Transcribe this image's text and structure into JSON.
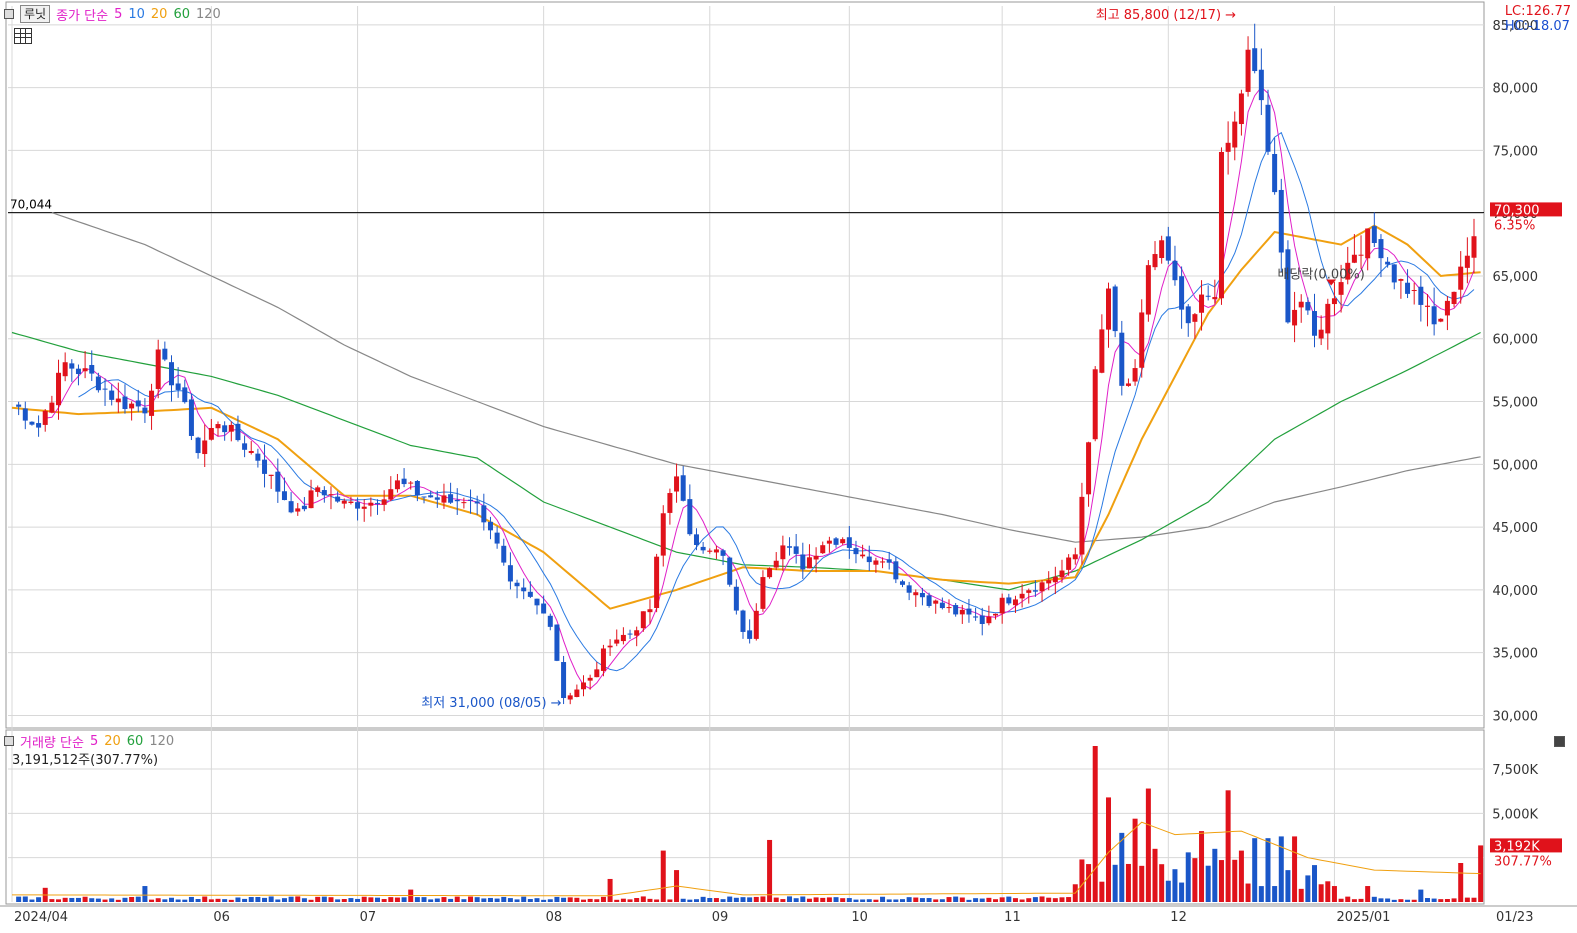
{
  "toolbar": {
    "ticker_button": "루닛",
    "price_legend": {
      "label": "종가 단순",
      "ma": [
        {
          "label": "5",
          "color": "#e020c8"
        },
        {
          "label": "10",
          "color": "#2a7ae2"
        },
        {
          "label": "20",
          "color": "#f0a010"
        },
        {
          "label": "60",
          "color": "#22a03c"
        },
        {
          "label": "120",
          "color": "#888888"
        }
      ]
    },
    "grid_icon": "grid-icon"
  },
  "corner": {
    "lc": "LC:126.77",
    "hc": "HC:-18.07"
  },
  "volume_legend": {
    "label": "거래량 단순",
    "ma": [
      {
        "label": "5",
        "color": "#e020c8"
      },
      {
        "label": "20",
        "color": "#f0a010"
      },
      {
        "label": "60",
        "color": "#22a03c"
      },
      {
        "label": "120",
        "color": "#888888"
      }
    ],
    "info": "3,191,512주(307.77%)"
  },
  "colors": {
    "up": "#e0121b",
    "down": "#1a56c8",
    "grid": "#d8d8d8",
    "axis": "#888888"
  },
  "chart_data": [
    {
      "type": "candlestick",
      "y_ticks": [
        "30,000",
        "35,000",
        "40,000",
        "45,000",
        "50,000",
        "55,000",
        "60,000",
        "65,000",
        "70,000",
        "75,000",
        "80,000",
        "85,000"
      ],
      "y_tick_values": [
        30000,
        35000,
        40000,
        45000,
        50000,
        55000,
        60000,
        65000,
        70000,
        75000,
        80000,
        85000
      ],
      "ylim": [
        29000,
        86500
      ],
      "x_ticks": [
        "2024/04",
        "06",
        "07",
        "08",
        "09",
        "10",
        "11",
        "12",
        "2025/01",
        "01/23"
      ],
      "x_tick_index": [
        0,
        30,
        52,
        80,
        105,
        126,
        149,
        174,
        199,
        224
      ],
      "n_candles": 221,
      "reference_line": {
        "label": "70,044",
        "value": 70044
      },
      "current_price": {
        "label": "70,300",
        "change": "6.35%",
        "value": 70300
      },
      "annotations": {
        "high": {
          "text": "최고 85,800 (12/17)",
          "value": 85800,
          "index": 186
        },
        "low": {
          "text": "최저 31,000 (08/05)",
          "value": 31000,
          "index": 83
        },
        "dividend": {
          "text": "배당락(0.00%)",
          "value": 64000,
          "index": 197
        }
      },
      "anchors": [
        [
          0,
          55000
        ],
        [
          4,
          53000
        ],
        [
          8,
          58000
        ],
        [
          12,
          57000
        ],
        [
          16,
          55000
        ],
        [
          20,
          54500
        ],
        [
          22,
          58500
        ],
        [
          25,
          56000
        ],
        [
          28,
          51000
        ],
        [
          31,
          53500
        ],
        [
          34,
          52000
        ],
        [
          37,
          50500
        ],
        [
          40,
          48000
        ],
        [
          43,
          46000
        ],
        [
          46,
          48200
        ],
        [
          50,
          46800
        ],
        [
          54,
          47000
        ],
        [
          58,
          48500
        ],
        [
          62,
          47500
        ],
        [
          66,
          47000
        ],
        [
          69,
          47400
        ],
        [
          72,
          45000
        ],
        [
          75,
          40200
        ],
        [
          78,
          39200
        ],
        [
          81,
          37500
        ],
        [
          83,
          31500
        ],
        [
          87,
          32800
        ],
        [
          90,
          36000
        ],
        [
          93,
          36500
        ],
        [
          96,
          38500
        ],
        [
          98,
          46000
        ],
        [
          100,
          49500
        ],
        [
          102,
          44000
        ],
        [
          105,
          43500
        ],
        [
          107,
          42500
        ],
        [
          109,
          38000
        ],
        [
          111,
          35800
        ],
        [
          113,
          41500
        ],
        [
          116,
          43500
        ],
        [
          119,
          42000
        ],
        [
          122,
          43800
        ],
        [
          125,
          44200
        ],
        [
          128,
          42500
        ],
        [
          131,
          42800
        ],
        [
          134,
          40500
        ],
        [
          137,
          39500
        ],
        [
          140,
          38600
        ],
        [
          143,
          38000
        ],
        [
          146,
          37500
        ],
        [
          149,
          39000
        ],
        [
          152,
          40000
        ],
        [
          155,
          40500
        ],
        [
          158,
          41500
        ],
        [
          160,
          42800
        ],
        [
          161,
          47500
        ],
        [
          163,
          57000
        ],
        [
          165,
          64000
        ],
        [
          167,
          56000
        ],
        [
          169,
          57000
        ],
        [
          171,
          66000
        ],
        [
          173,
          67500
        ],
        [
          175,
          64000
        ],
        [
          177,
          60500
        ],
        [
          179,
          63000
        ],
        [
          181,
          64000
        ],
        [
          182,
          74000
        ],
        [
          184,
          77000
        ],
        [
          186,
          82500
        ],
        [
          188,
          79000
        ],
        [
          190,
          71000
        ],
        [
          192,
          62000
        ],
        [
          194,
          63000
        ],
        [
          196,
          60000
        ],
        [
          198,
          62500
        ],
        [
          200,
          65000
        ],
        [
          202,
          67000
        ],
        [
          204,
          68000
        ],
        [
          206,
          67200
        ],
        [
          208,
          65000
        ],
        [
          210,
          64000
        ],
        [
          212,
          63000
        ],
        [
          214,
          61000
        ],
        [
          216,
          62500
        ],
        [
          218,
          66000
        ],
        [
          220,
          67500
        ],
        [
          221,
          70300
        ]
      ],
      "moving_averages": {
        "ma20_anchors": [
          [
            0,
            54500
          ],
          [
            10,
            54000
          ],
          [
            20,
            54200
          ],
          [
            30,
            54500
          ],
          [
            40,
            52000
          ],
          [
            50,
            47500
          ],
          [
            60,
            47500
          ],
          [
            70,
            46000
          ],
          [
            80,
            43000
          ],
          [
            90,
            38500
          ],
          [
            100,
            40000
          ],
          [
            110,
            41800
          ],
          [
            120,
            41500
          ],
          [
            130,
            41500
          ],
          [
            140,
            40800
          ],
          [
            150,
            40500
          ],
          [
            160,
            41000
          ],
          [
            165,
            46000
          ],
          [
            170,
            52000
          ],
          [
            175,
            57000
          ],
          [
            180,
            62000
          ],
          [
            185,
            65500
          ],
          [
            190,
            68500
          ],
          [
            195,
            68000
          ],
          [
            200,
            67500
          ],
          [
            205,
            69000
          ],
          [
            210,
            67500
          ],
          [
            215,
            65000
          ],
          [
            221,
            65300
          ]
        ],
        "ma60_anchors": [
          [
            0,
            60500
          ],
          [
            10,
            59000
          ],
          [
            20,
            58000
          ],
          [
            30,
            57000
          ],
          [
            40,
            55500
          ],
          [
            50,
            53500
          ],
          [
            60,
            51500
          ],
          [
            70,
            50500
          ],
          [
            80,
            47000
          ],
          [
            90,
            45000
          ],
          [
            100,
            43000
          ],
          [
            110,
            42000
          ],
          [
            120,
            41800
          ],
          [
            130,
            41500
          ],
          [
            140,
            40800
          ],
          [
            150,
            40000
          ],
          [
            160,
            41500
          ],
          [
            170,
            44000
          ],
          [
            180,
            47000
          ],
          [
            190,
            52000
          ],
          [
            200,
            55000
          ],
          [
            210,
            57500
          ],
          [
            221,
            60500
          ]
        ],
        "ma120_anchors": [
          [
            6,
            70044
          ],
          [
            20,
            67500
          ],
          [
            30,
            65000
          ],
          [
            40,
            62500
          ],
          [
            50,
            59500
          ],
          [
            60,
            57000
          ],
          [
            70,
            55000
          ],
          [
            80,
            53000
          ],
          [
            90,
            51500
          ],
          [
            100,
            50000
          ],
          [
            110,
            49000
          ],
          [
            120,
            48000
          ],
          [
            130,
            47000
          ],
          [
            140,
            46000
          ],
          [
            150,
            44800
          ],
          [
            160,
            43800
          ],
          [
            170,
            44200
          ],
          [
            180,
            45000
          ],
          [
            190,
            47000
          ],
          [
            200,
            48200
          ],
          [
            210,
            49500
          ],
          [
            221,
            50600
          ]
        ]
      }
    },
    {
      "type": "volume-bar",
      "y_ticks": [
        "",
        "5,000K",
        "7,500K"
      ],
      "y_tick_values": [
        2500,
        5000,
        7500
      ],
      "ylim": [
        0,
        8800
      ],
      "current_volume": {
        "label": "3,192K",
        "change": "307.77%",
        "value": 3192
      },
      "spikes": [
        [
          5,
          800
        ],
        [
          20,
          900
        ],
        [
          60,
          700
        ],
        [
          90,
          1300
        ],
        [
          98,
          2900
        ],
        [
          100,
          1800
        ],
        [
          114,
          3500
        ],
        [
          160,
          1000
        ],
        [
          161,
          2400
        ],
        [
          163,
          8800
        ],
        [
          165,
          5900
        ],
        [
          167,
          3900
        ],
        [
          169,
          4700
        ],
        [
          171,
          6400
        ],
        [
          172,
          3000
        ],
        [
          174,
          1200
        ],
        [
          177,
          2800
        ],
        [
          179,
          4000
        ],
        [
          181,
          3000
        ],
        [
          183,
          6300
        ],
        [
          185,
          2900
        ],
        [
          187,
          3600
        ],
        [
          189,
          3600
        ],
        [
          191,
          3700
        ],
        [
          193,
          3700
        ],
        [
          195,
          1500
        ],
        [
          197,
          1000
        ],
        [
          199,
          900
        ],
        [
          204,
          900
        ],
        [
          212,
          700
        ],
        [
          218,
          2200
        ],
        [
          221,
          3192
        ]
      ]
    }
  ]
}
